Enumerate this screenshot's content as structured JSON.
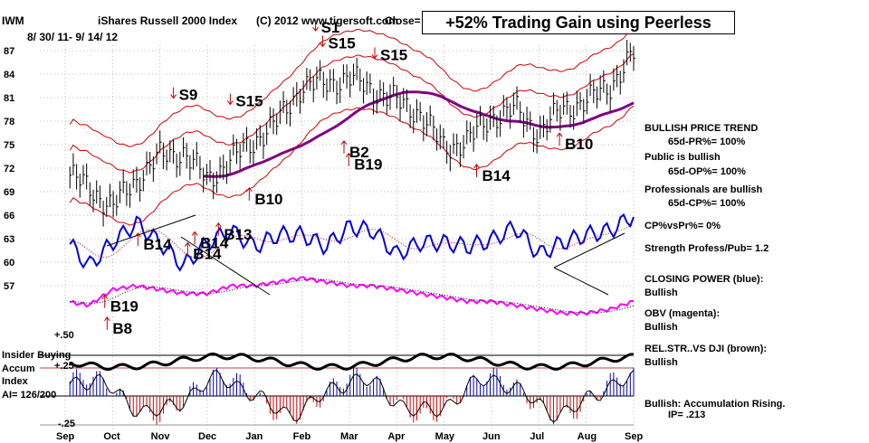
{
  "header": {
    "ticker": "IWM",
    "title": "iShares Russell 2000 Index",
    "copyright": "(C) 2012 www.tigersoft.com",
    "close_label": "Close=",
    "date_range": "8/ 30/ 11- 9/ 14/ 12",
    "badge": "+52% Trading Gain using Peerless"
  },
  "indicator_panel": {
    "label_lines": [
      "Insider Buying",
      "Accum",
      "Index",
      "AI= 126/200"
    ],
    "plus_50": "+.50",
    "plus_25": "+.25",
    "minus_25": "-.25"
  },
  "side_panel": [
    {
      "text": "BULLISH PRICE TREND"
    },
    {
      "text": "65d-PR%= 100%"
    },
    {
      "text": "Public is bullish"
    },
    {
      "text": "65d-OP%= 100%"
    },
    {
      "text": "Professionals are bullish"
    },
    {
      "text": "65d-CP%= 100%"
    },
    {
      "text": "CP%vsPr%=  0%"
    },
    {
      "text": "Strength Profess/Pub= 1.2"
    },
    {
      "text": "CLOSING POWER (blue):"
    },
    {
      "text": "Bullish"
    },
    {
      "text": "OBV (magenta):"
    },
    {
      "text": "Bullish"
    },
    {
      "text": "REL.STR..VS DJI (brown):"
    },
    {
      "text": "Bullish"
    },
    {
      "text": "Bullish:  Accumulation Rising."
    },
    {
      "text": "IP=  .213"
    }
  ],
  "signals": [
    {
      "label": "S1",
      "x": 5.4,
      "y": 89.3
    },
    {
      "label": "S15",
      "x": 5.55,
      "y": 87.3
    },
    {
      "label": "S15",
      "x": 6.65,
      "y": 85.8
    },
    {
      "label": "S9",
      "x": 2.4,
      "y": 80.7
    },
    {
      "label": "S15",
      "x": 3.6,
      "y": 79.9
    },
    {
      "label": "B2",
      "x": 6.0,
      "y": 73.4
    },
    {
      "label": "B19",
      "x": 6.1,
      "y": 71.8
    },
    {
      "label": "B10",
      "x": 4.0,
      "y": 67.4
    },
    {
      "label": "B10",
      "x": 10.55,
      "y": 74.4
    },
    {
      "label": "B14",
      "x": 8.8,
      "y": 70.4
    },
    {
      "label": "B13",
      "x": 3.35,
      "y": 62.9
    },
    {
      "label": "B14",
      "x": 1.65,
      "y": 61.6
    },
    {
      "label": "B14",
      "x": 2.7,
      "y": 60.4
    },
    {
      "label": "B14",
      "x": 2.85,
      "y": 61.8
    },
    {
      "label": "B19",
      "x": 0.95,
      "y": 53.7
    },
    {
      "label": "B8",
      "x": 1.0,
      "y": 50.9
    }
  ],
  "chart_data": {
    "type": "line",
    "title": "iShares Russell 2000 Index",
    "x_tick_labels": [
      "Sep",
      "Oct",
      "Nov",
      "Dec",
      "Jan",
      "Feb",
      "Mar",
      "Apr",
      "May",
      "Jun",
      "Jul",
      "Aug",
      "Sep"
    ],
    "y_tick_labels": [
      "87",
      "84",
      "81",
      "78",
      "75",
      "72",
      "69",
      "66",
      "63",
      "60",
      "57"
    ],
    "ylim": [
      51.5,
      88.5
    ],
    "grid": true,
    "price_closes": {
      "months": [
        0,
        0.5,
        1,
        1.5,
        2,
        2.5,
        3,
        3.5,
        4,
        4.5,
        5,
        5.5,
        6,
        6.5,
        7,
        7.5,
        8,
        8.5,
        9,
        9.5,
        10,
        10.5,
        11,
        11.5,
        12
      ],
      "values": [
        71.5,
        69.5,
        67.0,
        70.5,
        73.5,
        74.0,
        70.5,
        73.0,
        75.5,
        78.0,
        82.5,
        82.8,
        83.5,
        82.0,
        80.5,
        79.0,
        74.5,
        75.5,
        78.5,
        79.5,
        76.5,
        79.5,
        80.5,
        82.5,
        86.5
      ]
    },
    "series": [
      {
        "values": [
          63.0,
          59.5,
          62.5,
          65.0,
          62.5,
          59.5,
          62.5,
          64.0,
          62.0,
          63.5,
          63.5,
          62.0,
          64.5,
          64.0,
          61.0,
          62.5,
          62.5,
          62.0,
          62.8,
          64.5,
          61.0,
          62.5,
          63.5,
          64.0,
          66.0
        ]
      },
      {
        "values": [
          55.0,
          54.5,
          56.5,
          57.0,
          56.5,
          56.0,
          56.0,
          57.0,
          57.0,
          57.5,
          58.0,
          57.5,
          57.0,
          57.0,
          56.5,
          56.0,
          55.5,
          55.0,
          55.0,
          54.5,
          54.0,
          53.5,
          53.5,
          54.0,
          55.0
        ]
      }
    ]
  }
}
